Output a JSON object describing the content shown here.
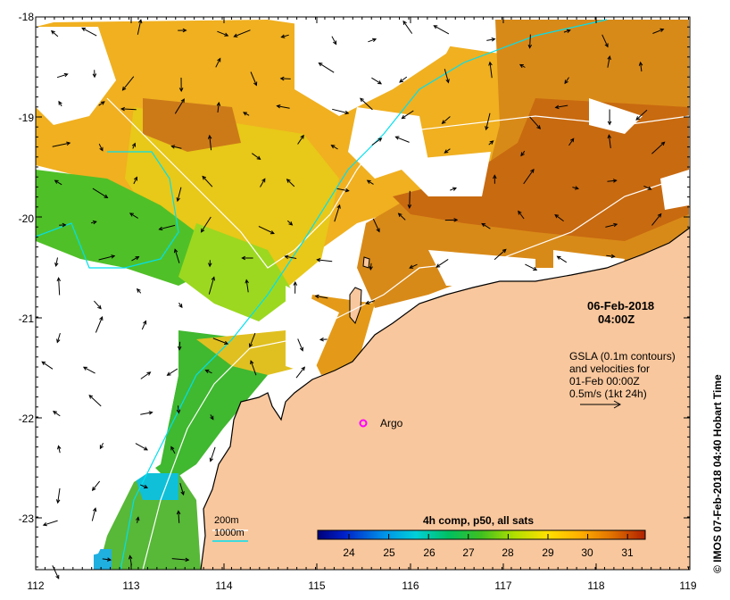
{
  "map": {
    "lon_ticks": [
      "112",
      "113",
      "114",
      "115",
      "116",
      "117",
      "118",
      "119"
    ],
    "lat_ticks": [
      "-18",
      "-19",
      "-20",
      "-21",
      "-22",
      "-23"
    ],
    "lon_range": [
      112,
      119
    ],
    "lat_range": [
      -23.5,
      -18
    ]
  },
  "annotations": {
    "date": "06-Feb-2018",
    "time": "04:00Z",
    "gsla_line1": "GSLA (0.1m contours)",
    "gsla_line2": "and velocities for",
    "gsla_line3": "01-Feb 00:00Z",
    "gsla_line4": "0.5m/s (1kt 24h)",
    "argo_label": "Argo",
    "depth_200": "200m",
    "depth_1000": "1000m",
    "credit": "© IMOS 07-Feb-2018 04:40 Hobart Time"
  },
  "colorbar": {
    "title": "4h comp, p50, all sats",
    "ticks": [
      "24",
      "25",
      "26",
      "27",
      "28",
      "29",
      "30",
      "31"
    ]
  },
  "colors": {
    "land": "#f9c79d",
    "contour_200": "#ffffff",
    "contour_1000": "#00e0f0",
    "argo": "#ff00ff"
  }
}
